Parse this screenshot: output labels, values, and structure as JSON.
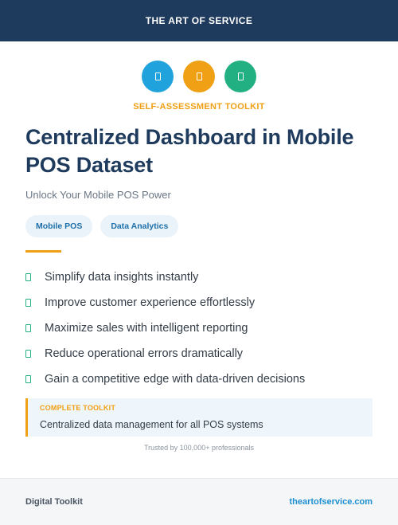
{
  "header": {
    "title": "THE ART OF SERVICE"
  },
  "icons": [
    {
      "name": "phone-icon",
      "color": "#20a3dd"
    },
    {
      "name": "phone-icon",
      "color": "#f0a014"
    },
    {
      "name": "phone-icon",
      "color": "#22b083"
    }
  ],
  "kicker": "SELF-ASSESSMENT TOOLKIT",
  "title": "Centralized Dashboard in Mobile POS Dataset",
  "subtitle": "Unlock Your Mobile POS Power",
  "tags": [
    "Mobile POS",
    "Data Analytics"
  ],
  "benefits": [
    "Simplify data insights instantly",
    "Improve customer experience effortlessly",
    "Maximize sales with intelligent reporting",
    "Reduce operational errors dramatically",
    "Gain a competitive edge with data-driven decisions"
  ],
  "callout": {
    "label": "COMPLETE TOOLKIT",
    "text": "Centralized data management for all POS systems"
  },
  "trusted": "Trusted by 100,000+ professionals",
  "footer": {
    "left": "Digital Toolkit",
    "right": "theartofservice.com"
  },
  "colors": {
    "navy": "#1e3a5c",
    "orange": "#f0a014",
    "blue": "#20a3dd",
    "green": "#22b083"
  }
}
